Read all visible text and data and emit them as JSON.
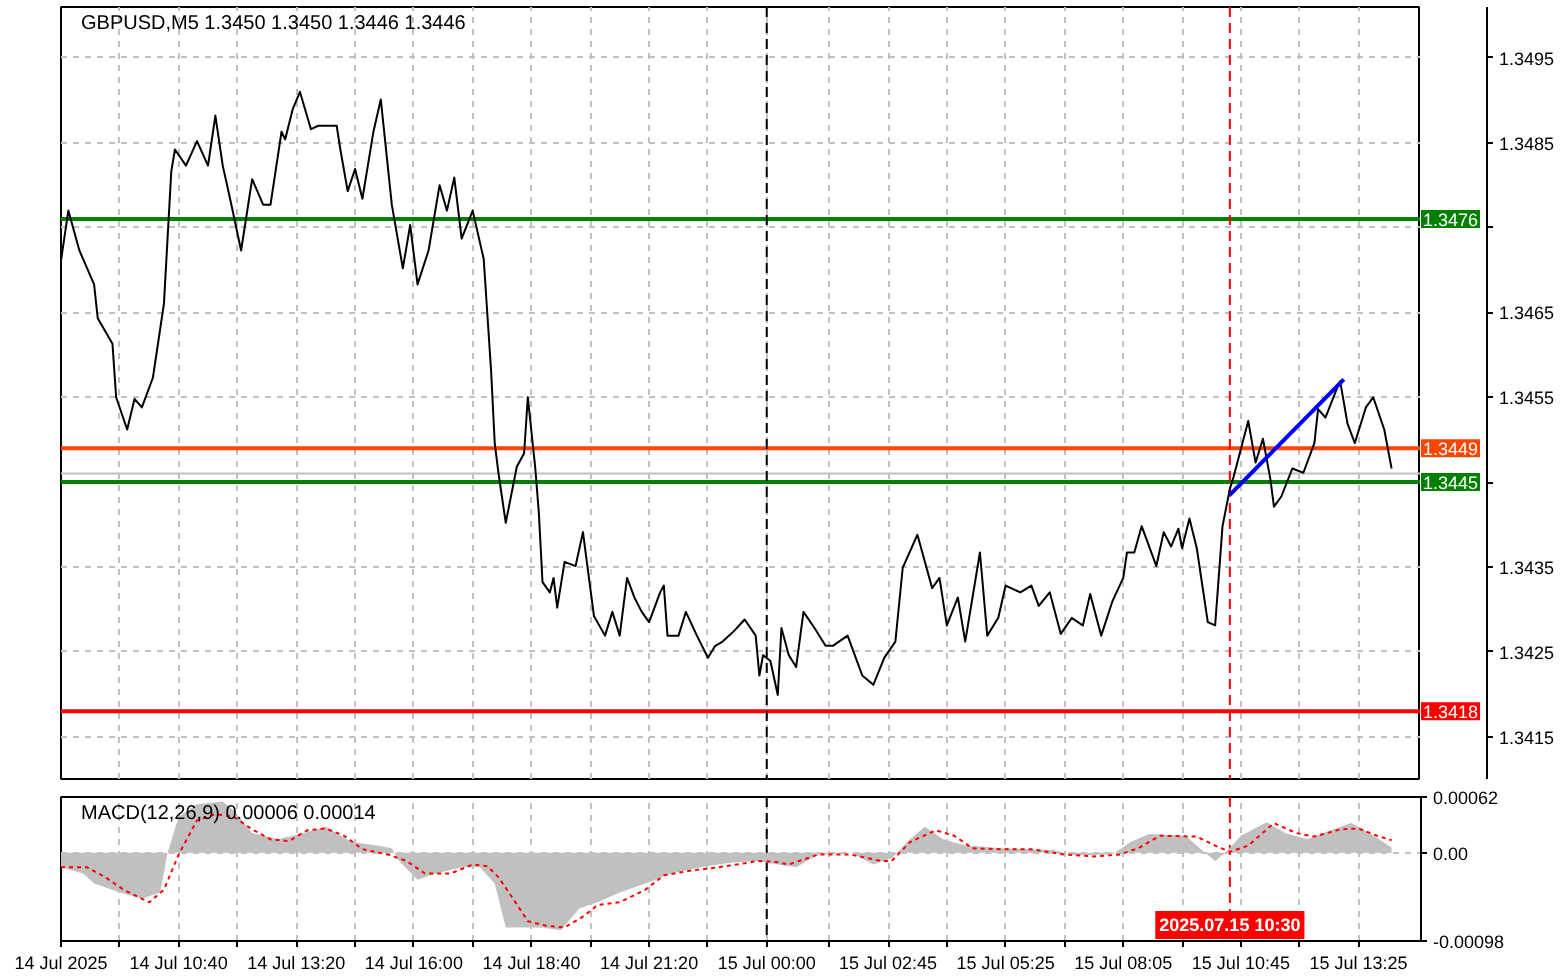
{
  "chart_data": [
    {
      "type": "line",
      "title": "GBPUSD,M5 1.3450 1.3450 1.3446 1.3446",
      "tick_labels": "y",
      "grid": true,
      "xlim": [
        "2025-07-14T08:00",
        "2025-07-15T14:50"
      ],
      "xticks": [
        {
          "value": "2025-07-14T08:00",
          "label": null
        },
        {
          "value": "2025-07-14T09:20",
          "label": null
        },
        {
          "value": "2025-07-14T10:40",
          "label": null
        },
        {
          "value": "2025-07-14T12:00",
          "label": null
        },
        {
          "value": "2025-07-14T13:20",
          "label": null
        },
        {
          "value": "2025-07-14T14:40",
          "label": null
        },
        {
          "value": "2025-07-14T16:00",
          "label": null
        },
        {
          "value": "2025-07-14T17:20",
          "label": null
        },
        {
          "value": "2025-07-14T18:40",
          "label": null
        },
        {
          "value": "2025-07-14T20:00",
          "label": null
        },
        {
          "value": "2025-07-14T21:20",
          "label": null
        },
        {
          "value": "2025-07-14T22:40",
          "label": null
        },
        {
          "value": "2025-07-15T00:00",
          "label": null
        },
        {
          "value": "2025-07-15T01:25",
          "label": null
        },
        {
          "value": "2025-07-15T02:45",
          "label": null
        },
        {
          "value": "2025-07-15T04:05",
          "label": null
        },
        {
          "value": "2025-07-15T05:25",
          "label": null
        },
        {
          "value": "2025-07-15T06:45",
          "label": null
        },
        {
          "value": "2025-07-15T08:05",
          "label": null
        },
        {
          "value": "2025-07-15T09:25",
          "label": null
        },
        {
          "value": "2025-07-15T10:45",
          "label": null
        },
        {
          "value": "2025-07-15T12:05",
          "label": null
        },
        {
          "value": "2025-07-15T13:25",
          "label": null
        }
      ],
      "ylim": [
        1.341,
        1.3501
      ],
      "yticks": [
        1.3415,
        1.3425,
        1.3435,
        {
          "value": 1.3445,
          "label": null
        },
        1.3455,
        1.3465,
        {
          "value": 1.3475,
          "label": null
        },
        1.3485,
        1.3495
      ],
      "series": [
        {
          "color": "#000000",
          "x": [
            "2025-07-14T08:00",
            "2025-07-14T08:10",
            "2025-07-14T08:25",
            "2025-07-14T08:45",
            "2025-07-14T08:50",
            "2025-07-14T09:10",
            "2025-07-14T09:15",
            "2025-07-14T09:30",
            "2025-07-14T09:40",
            "2025-07-14T09:50",
            "2025-07-14T10:05",
            "2025-07-14T10:20",
            "2025-07-14T10:30",
            "2025-07-14T10:35",
            "2025-07-14T10:50",
            "2025-07-14T11:05",
            "2025-07-14T11:20",
            "2025-07-14T11:30",
            "2025-07-14T11:40",
            "2025-07-14T11:50",
            "2025-07-14T12:05",
            "2025-07-14T12:20",
            "2025-07-14T12:35",
            "2025-07-14T12:45",
            "2025-07-14T13:00",
            "2025-07-14T13:05",
            "2025-07-14T13:15",
            "2025-07-14T13:25",
            "2025-07-14T13:40",
            "2025-07-14T13:50",
            "2025-07-14T14:15",
            "2025-07-14T14:20",
            "2025-07-14T14:30",
            "2025-07-14T14:40",
            "2025-07-14T14:50",
            "2025-07-14T15:05",
            "2025-07-14T15:15",
            "2025-07-14T15:30",
            "2025-07-14T15:45",
            "2025-07-14T15:55",
            "2025-07-14T16:05",
            "2025-07-14T16:20",
            "2025-07-14T16:35",
            "2025-07-14T16:45",
            "2025-07-14T16:55",
            "2025-07-14T17:05",
            "2025-07-14T17:20",
            "2025-07-14T17:35",
            "2025-07-14T17:45",
            "2025-07-14T17:50",
            "2025-07-14T17:55",
            "2025-07-14T18:05",
            "2025-07-14T18:20",
            "2025-07-14T18:30",
            "2025-07-14T18:35",
            "2025-07-14T18:45",
            "2025-07-14T18:50",
            "2025-07-14T18:55",
            "2025-07-14T19:05",
            "2025-07-14T19:10",
            "2025-07-14T19:15",
            "2025-07-14T19:25",
            "2025-07-14T19:40",
            "2025-07-14T19:50",
            "2025-07-14T20:05",
            "2025-07-14T20:20",
            "2025-07-14T20:30",
            "2025-07-14T20:40",
            "2025-07-14T20:50",
            "2025-07-14T21:00",
            "2025-07-14T21:10",
            "2025-07-14T21:20",
            "2025-07-14T21:35",
            "2025-07-14T21:40",
            "2025-07-14T21:45",
            "2025-07-14T22:00",
            "2025-07-14T22:10",
            "2025-07-14T22:25",
            "2025-07-14T22:40",
            "2025-07-14T22:50",
            "2025-07-14T23:00",
            "2025-07-14T23:15",
            "2025-07-14T23:30",
            "2025-07-14T23:45",
            "2025-07-14T23:50",
            "2025-07-14T23:55",
            "2025-07-15T00:05",
            "2025-07-15T00:15",
            "2025-07-15T00:20",
            "2025-07-15T00:30",
            "2025-07-15T00:40",
            "2025-07-15T00:50",
            "2025-07-15T01:05",
            "2025-07-15T01:20",
            "2025-07-15T01:30",
            "2025-07-15T01:50",
            "2025-07-15T02:10",
            "2025-07-15T02:25",
            "2025-07-15T02:40",
            "2025-07-15T02:55",
            "2025-07-15T03:05",
            "2025-07-15T03:25",
            "2025-07-15T03:45",
            "2025-07-15T03:55",
            "2025-07-15T04:05",
            "2025-07-15T04:20",
            "2025-07-15T04:30",
            "2025-07-15T04:50",
            "2025-07-15T05:00",
            "2025-07-15T05:15",
            "2025-07-15T05:25",
            "2025-07-15T05:45",
            "2025-07-15T06:00",
            "2025-07-15T06:10",
            "2025-07-15T06:25",
            "2025-07-15T06:40",
            "2025-07-15T06:55",
            "2025-07-15T07:10",
            "2025-07-15T07:20",
            "2025-07-15T07:35",
            "2025-07-15T07:50",
            "2025-07-15T08:05",
            "2025-07-15T08:10",
            "2025-07-15T08:20",
            "2025-07-15T08:30",
            "2025-07-15T08:50",
            "2025-07-15T09:00",
            "2025-07-15T09:10",
            "2025-07-15T09:20",
            "2025-07-15T09:25",
            "2025-07-15T09:35",
            "2025-07-15T09:45",
            "2025-07-15T10:00",
            "2025-07-15T10:10",
            "2025-07-15T10:20",
            "2025-07-15T10:30",
            "2025-07-15T10:35",
            "2025-07-15T10:55",
            "2025-07-15T11:05",
            "2025-07-15T11:15",
            "2025-07-15T11:25",
            "2025-07-15T11:30",
            "2025-07-15T11:40",
            "2025-07-15T11:55",
            "2025-07-15T12:10",
            "2025-07-15T12:25",
            "2025-07-15T12:30",
            "2025-07-15T12:40",
            "2025-07-15T12:55",
            "2025-07-15T13:00",
            "2025-07-15T13:10",
            "2025-07-15T13:20",
            "2025-07-15T13:35",
            "2025-07-15T13:45",
            "2025-07-15T14:00",
            "2025-07-15T14:10"
          ],
          "values": [
            1.34711,
            1.3477,
            1.34723,
            1.34683,
            1.34643,
            1.34613,
            1.3455,
            1.34512,
            1.34548,
            1.34538,
            1.34573,
            1.3466,
            1.34816,
            1.34842,
            1.34823,
            1.34852,
            1.34823,
            1.34882,
            1.34823,
            1.34784,
            1.34723,
            1.34807,
            1.34777,
            1.34777,
            1.34863,
            1.34854,
            1.34889,
            1.3491,
            1.34866,
            1.3487,
            1.3487,
            1.34842,
            1.34793,
            1.34819,
            1.34784,
            1.34863,
            1.34901,
            1.34777,
            1.34702,
            1.34753,
            1.34683,
            1.34723,
            1.348,
            1.3477,
            1.34809,
            1.34737,
            1.3477,
            1.34713,
            1.34582,
            1.34496,
            1.34461,
            1.34402,
            1.34468,
            1.34484,
            1.3455,
            1.34468,
            1.34414,
            1.34332,
            1.3432,
            1.34337,
            1.34302,
            1.34356,
            1.34351,
            1.34391,
            1.34292,
            1.34269,
            1.34297,
            1.34269,
            1.34337,
            1.34314,
            1.34297,
            1.34285,
            1.3432,
            1.34328,
            1.34269,
            1.34269,
            1.34297,
            1.34269,
            1.34243,
            1.34257,
            1.34262,
            1.34274,
            1.34288,
            1.34269,
            1.34222,
            1.34246,
            1.34239,
            1.34199,
            1.34278,
            1.34246,
            1.34232,
            1.34297,
            1.34278,
            1.34257,
            1.34257,
            1.34269,
            1.34222,
            1.34211,
            1.34243,
            1.34262,
            1.34349,
            1.34388,
            1.34325,
            1.34337,
            1.34281,
            1.34314,
            1.34262,
            1.34367,
            1.34269,
            1.3429,
            1.34328,
            1.3432,
            1.34328,
            1.34304,
            1.3432,
            1.34271,
            1.3429,
            1.34281,
            1.34318,
            1.34269,
            1.34309,
            1.34337,
            1.34367,
            1.34367,
            1.34398,
            1.34351,
            1.34391,
            1.34374,
            1.34395,
            1.34372,
            1.34407,
            1.34372,
            1.34285,
            1.34281,
            1.34398,
            1.34442,
            1.34456,
            1.34522,
            1.34473,
            1.34501,
            1.34454,
            1.34421,
            1.34433,
            1.34466,
            1.34461,
            1.34496,
            1.34536,
            1.34526,
            1.34559,
            1.34569,
            1.34519,
            1.34496,
            1.34538,
            1.3455,
            1.34512,
            1.34466
          ]
        },
        {
          "color": "#0000ff",
          "x": [
            "2025-07-15T10:30",
            "2025-07-15T13:05"
          ],
          "values": [
            1.34435,
            1.34571
          ]
        }
      ],
      "ref_lines": [
        {
          "axis": "y",
          "value": 1.3476,
          "label": "1.3476",
          "color": "#008000"
        },
        {
          "axis": "y",
          "value": 1.3449,
          "label": "1.3449",
          "color": "#ff4500"
        },
        {
          "axis": "y",
          "value": 1.3446,
          "color": "#c0c0c0"
        },
        {
          "axis": "y",
          "value": 1.3445,
          "label": "1.3445",
          "color": "#008000"
        },
        {
          "axis": "y",
          "value": 1.3418,
          "label": "1.3418",
          "color": "#ff0000"
        },
        {
          "axis": "x",
          "value": "2025-07-15T00:00",
          "color": "#000000",
          "line_style": "dashed"
        },
        {
          "axis": "x",
          "value": "2025-07-15T10:30",
          "color": "#ff0000",
          "line_style": "dashed"
        }
      ]
    },
    {
      "type": "area",
      "title": "MACD(12,26,9) 0.00006 0.00014",
      "grid": true,
      "xlim": [
        "2025-07-14T08:00",
        "2025-07-15T14:50"
      ],
      "xticks": [
        {
          "value": "2025-07-14T08:00",
          "label": "14 Jul 2025"
        },
        {
          "value": "2025-07-14T09:20",
          "label": null
        },
        {
          "value": "2025-07-14T10:40",
          "label": "14 Jul 10:40"
        },
        {
          "value": "2025-07-14T12:00",
          "label": null
        },
        {
          "value": "2025-07-14T13:20",
          "label": "14 Jul 13:20"
        },
        {
          "value": "2025-07-14T14:40",
          "label": null
        },
        {
          "value": "2025-07-14T16:00",
          "label": "14 Jul 16:00"
        },
        {
          "value": "2025-07-14T17:20",
          "label": null
        },
        {
          "value": "2025-07-14T18:40",
          "label": "14 Jul 18:40"
        },
        {
          "value": "2025-07-14T20:00",
          "label": null
        },
        {
          "value": "2025-07-14T21:20",
          "label": "14 Jul 21:20"
        },
        {
          "value": "2025-07-14T22:40",
          "label": null
        },
        {
          "value": "2025-07-15T00:00",
          "label": "15 Jul 00:00"
        },
        {
          "value": "2025-07-15T01:25",
          "label": null
        },
        {
          "value": "2025-07-15T02:45",
          "label": "15 Jul 02:45"
        },
        {
          "value": "2025-07-15T04:05",
          "label": null
        },
        {
          "value": "2025-07-15T05:25",
          "label": "15 Jul 05:25"
        },
        {
          "value": "2025-07-15T06:45",
          "label": null
        },
        {
          "value": "2025-07-15T08:05",
          "label": "15 Jul 08:05"
        },
        {
          "value": "2025-07-15T09:25",
          "label": null
        },
        {
          "value": "2025-07-15T10:45",
          "label": "15 Jul 10:45"
        },
        {
          "value": "2025-07-15T12:05",
          "label": null
        },
        {
          "value": "2025-07-15T13:25",
          "label": "15 Jul 13:25"
        }
      ],
      "ylim": [
        -0.00098,
        0.00062
      ],
      "yticks": [
        -0.00098,
        {
          "value": 0,
          "label": "0.00"
        },
        0.00062
      ],
      "series": [
        {
          "type": "area",
          "color": "#c0c0c0",
          "x": [
            "2025-07-14T08:00",
            "2025-07-14T08:30",
            "2025-07-14T08:45",
            "2025-07-14T09:20",
            "2025-07-14T09:50",
            "2025-07-14T10:15",
            "2025-07-14T10:25",
            "2025-07-14T10:40",
            "2025-07-14T11:05",
            "2025-07-14T11:40",
            "2025-07-14T11:55",
            "2025-07-14T12:20",
            "2025-07-14T12:55",
            "2025-07-14T13:30",
            "2025-07-14T14:00",
            "2025-07-14T14:35",
            "2025-07-14T15:10",
            "2025-07-14T15:30",
            "2025-07-14T15:40",
            "2025-07-14T16:05",
            "2025-07-14T16:30",
            "2025-07-14T17:05",
            "2025-07-14T17:30",
            "2025-07-14T17:50",
            "2025-07-14T18:05",
            "2025-07-14T18:30",
            "2025-07-14T18:55",
            "2025-07-14T19:20",
            "2025-07-14T19:45",
            "2025-07-14T20:10",
            "2025-07-14T20:40",
            "2025-07-14T21:15",
            "2025-07-14T21:50",
            "2025-07-14T22:30",
            "2025-07-14T23:10",
            "2025-07-14T23:45",
            "2025-07-15T00:40",
            "2025-07-15T01:10",
            "2025-07-15T01:55",
            "2025-07-15T02:25",
            "2025-07-15T02:50",
            "2025-07-15T03:15",
            "2025-07-15T03:35",
            "2025-07-15T04:00",
            "2025-07-15T04:30",
            "2025-07-15T05:20",
            "2025-07-15T06:30",
            "2025-07-15T07:00",
            "2025-07-15T07:50",
            "2025-07-15T08:15",
            "2025-07-15T08:40",
            "2025-07-15T09:30",
            "2025-07-15T09:55",
            "2025-07-15T10:10",
            "2025-07-15T10:25",
            "2025-07-15T10:45",
            "2025-07-15T11:20",
            "2025-07-15T11:45",
            "2025-07-15T12:15",
            "2025-07-15T12:50",
            "2025-07-15T13:15",
            "2025-07-15T13:40",
            "2025-07-15T14:10"
          ],
          "values": [
            -0.00016,
            -0.00023,
            -0.00034,
            -0.00044,
            -0.00051,
            -0.00044,
            0,
            0.0004,
            0.00054,
            0.00057,
            0.00047,
            0.00022,
            0.00015,
            0.00022,
            0.00029,
            0.00012,
            8e-05,
            5e-05,
            -9e-05,
            -0.0003,
            -0.00023,
            -0.00016,
            -0.00016,
            -0.00034,
            -0.00083,
            -0.00083,
            -0.00083,
            -0.00086,
            -0.00062,
            -0.00055,
            -0.00044,
            -0.00034,
            -0.00023,
            -0.00016,
            -0.00011,
            -9e-05,
            -0.00016,
            -2e-05,
            0,
            -0.00013,
            -6e-05,
            0.00015,
            0.00029,
            0.00015,
            8e-05,
            5e-05,
            3e-05,
            -3e-05,
            -2e-05,
            0.00012,
            0.00021,
            0.00019,
            1e-05,
            -9e-05,
            1e-05,
            0.00019,
            0.00034,
            0.00022,
            0.00015,
            0.00026,
            0.00033,
            0.00022,
            6e-05
          ]
        },
        {
          "type": "line",
          "color": "#ff0000",
          "line_style": "dotted",
          "x": [
            "2025-07-14T08:00",
            "2025-07-14T08:35",
            "2025-07-14T09:00",
            "2025-07-14T09:25",
            "2025-07-14T10:00",
            "2025-07-14T10:20",
            "2025-07-14T10:40",
            "2025-07-14T11:05",
            "2025-07-14T11:30",
            "2025-07-14T11:55",
            "2025-07-14T12:20",
            "2025-07-14T12:45",
            "2025-07-14T13:10",
            "2025-07-14T13:35",
            "2025-07-14T14:00",
            "2025-07-14T14:25",
            "2025-07-14T14:50",
            "2025-07-14T15:25",
            "2025-07-14T15:50",
            "2025-07-14T16:15",
            "2025-07-14T16:50",
            "2025-07-14T17:20",
            "2025-07-14T17:40",
            "2025-07-14T17:55",
            "2025-07-14T18:15",
            "2025-07-14T18:35",
            "2025-07-14T19:00",
            "2025-07-14T19:25",
            "2025-07-14T19:50",
            "2025-07-14T20:10",
            "2025-07-14T20:40",
            "2025-07-14T21:15",
            "2025-07-14T21:40",
            "2025-07-14T22:15",
            "2025-07-14T22:55",
            "2025-07-14T23:35",
            "2025-07-14T23:45",
            "2025-07-15T00:10",
            "2025-07-15T00:30",
            "2025-07-15T01:10",
            "2025-07-15T01:55",
            "2025-07-15T02:35",
            "2025-07-15T02:50",
            "2025-07-15T03:15",
            "2025-07-15T03:50",
            "2025-07-15T04:15",
            "2025-07-15T04:40",
            "2025-07-15T05:20",
            "2025-07-15T06:00",
            "2025-07-15T06:45",
            "2025-07-15T07:25",
            "2025-07-15T08:00",
            "2025-07-15T08:25",
            "2025-07-15T08:55",
            "2025-07-15T09:45",
            "2025-07-15T10:10",
            "2025-07-15T10:30",
            "2025-07-15T10:55",
            "2025-07-15T11:30",
            "2025-07-15T12:00",
            "2025-07-15T12:25",
            "2025-07-15T13:00",
            "2025-07-15T13:25",
            "2025-07-15T13:50",
            "2025-07-15T14:10"
          ],
          "values": [
            -0.00016,
            -0.00016,
            -0.00027,
            -0.00041,
            -0.00055,
            -0.00041,
            -2e-05,
            0.00036,
            0.00043,
            0.0004,
            0.00026,
            0.00015,
            0.00013,
            0.00025,
            0.00027,
            0.00019,
            4e-05,
            -2e-05,
            -9e-05,
            -0.00023,
            -0.00023,
            -0.00013,
            -0.00015,
            -0.00027,
            -0.00051,
            -0.00076,
            -0.00081,
            -0.00083,
            -0.00071,
            -0.00058,
            -0.00055,
            -0.00041,
            -0.00025,
            -0.0002,
            -0.00016,
            -0.00011,
            -9e-05,
            -0.0001,
            -0.00013,
            -2e-05,
            -2e-05,
            -9e-05,
            -9e-05,
            0.00012,
            0.00025,
            0.00019,
            5e-05,
            4e-05,
            4e-05,
            -2e-05,
            -4e-05,
            -2e-05,
            5e-05,
            0.00019,
            0.00018,
            8e-05,
            1e-05,
            8e-05,
            0.00033,
            0.00022,
            0.00018,
            0.00026,
            0.00027,
            0.00019,
            0.00014
          ]
        }
      ],
      "ref_lines": [
        {
          "axis": "x",
          "value": "2025-07-15T00:00",
          "color": "#000000",
          "line_style": "dashed"
        },
        {
          "axis": "x",
          "value": "2025-07-15T10:30",
          "label": "2025.07.15 10:30",
          "color": "#ff0000",
          "line_style": "dashed"
        }
      ]
    }
  ]
}
